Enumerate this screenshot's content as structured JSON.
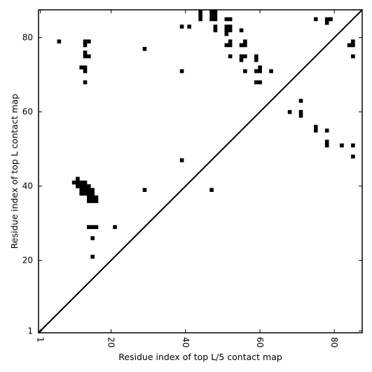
{
  "chart_data": {
    "type": "heatmap",
    "title": "",
    "xlabel": "Residue index of top L/5 contact map",
    "ylabel": "Residue index of top L contact map",
    "xlim": [
      0.5,
      87.5
    ],
    "ylim": [
      0.5,
      87.5
    ],
    "x_ticks": [
      {
        "value": 1,
        "label": "1"
      },
      {
        "value": 20,
        "label": "20"
      },
      {
        "value": 40,
        "label": "40"
      },
      {
        "value": 60,
        "label": "60"
      },
      {
        "value": 80,
        "label": "80"
      }
    ],
    "y_ticks": [
      {
        "value": 1,
        "label": "1"
      },
      {
        "value": 20,
        "label": "20"
      },
      {
        "value": 40,
        "label": "40"
      },
      {
        "value": 60,
        "label": "60"
      },
      {
        "value": 80,
        "label": "80"
      }
    ],
    "x_tick_label_rotation": -90,
    "grid": false,
    "diagonal_line": true,
    "cell_color": "#000000",
    "background_color": "#ffffff",
    "cells": [
      [
        44,
        87
      ],
      [
        44,
        86
      ],
      [
        44,
        85
      ],
      [
        47,
        87
      ],
      [
        48,
        87
      ],
      [
        47,
        86
      ],
      [
        48,
        86
      ],
      [
        47,
        85
      ],
      [
        48,
        85
      ],
      [
        39,
        83
      ],
      [
        41,
        83
      ],
      [
        48,
        83
      ],
      [
        48,
        82
      ],
      [
        51,
        85
      ],
      [
        52,
        85
      ],
      [
        51,
        83
      ],
      [
        52,
        83
      ],
      [
        51,
        82
      ],
      [
        52,
        82
      ],
      [
        51,
        81
      ],
      [
        52,
        79
      ],
      [
        51,
        78
      ],
      [
        52,
        78
      ],
      [
        52,
        75
      ],
      [
        55,
        82
      ],
      [
        56,
        79
      ],
      [
        55,
        78
      ],
      [
        56,
        78
      ],
      [
        55,
        75
      ],
      [
        56,
        75
      ],
      [
        55,
        74
      ],
      [
        59,
        75
      ],
      [
        59,
        74
      ],
      [
        59,
        71
      ],
      [
        60,
        72
      ],
      [
        60,
        71
      ],
      [
        56,
        71
      ],
      [
        63,
        71
      ],
      [
        59,
        68
      ],
      [
        60,
        68
      ],
      [
        75,
        85
      ],
      [
        78,
        85
      ],
      [
        79,
        85
      ],
      [
        78,
        84
      ],
      [
        85,
        79
      ],
      [
        84,
        78
      ],
      [
        85,
        78
      ],
      [
        85,
        75
      ],
      [
        6,
        79
      ],
      [
        13,
        79
      ],
      [
        14,
        79
      ],
      [
        13,
        78
      ],
      [
        13,
        76
      ],
      [
        13,
        75
      ],
      [
        14,
        75
      ],
      [
        12,
        72
      ],
      [
        13,
        72
      ],
      [
        13,
        71
      ],
      [
        13,
        68
      ],
      [
        29,
        77
      ],
      [
        39,
        71
      ],
      [
        71,
        63
      ],
      [
        68,
        60
      ],
      [
        71,
        60
      ],
      [
        71,
        59
      ],
      [
        75,
        56
      ],
      [
        75,
        55
      ],
      [
        78,
        55
      ],
      [
        78,
        52
      ],
      [
        78,
        51
      ],
      [
        82,
        51
      ],
      [
        85,
        51
      ],
      [
        85,
        48
      ],
      [
        39,
        47
      ],
      [
        11,
        42
      ],
      [
        10,
        41
      ],
      [
        11,
        41
      ],
      [
        12,
        41
      ],
      [
        13,
        41
      ],
      [
        11,
        40
      ],
      [
        12,
        40
      ],
      [
        13,
        40
      ],
      [
        14,
        40
      ],
      [
        12,
        39
      ],
      [
        13,
        39
      ],
      [
        14,
        39
      ],
      [
        15,
        39
      ],
      [
        12,
        38
      ],
      [
        13,
        38
      ],
      [
        14,
        38
      ],
      [
        15,
        38
      ],
      [
        14,
        37
      ],
      [
        15,
        37
      ],
      [
        16,
        37
      ],
      [
        14,
        36
      ],
      [
        15,
        36
      ],
      [
        16,
        36
      ],
      [
        29,
        39
      ],
      [
        47,
        39
      ],
      [
        14,
        29
      ],
      [
        15,
        29
      ],
      [
        16,
        29
      ],
      [
        21,
        29
      ],
      [
        15,
        26
      ],
      [
        15,
        21
      ]
    ]
  }
}
